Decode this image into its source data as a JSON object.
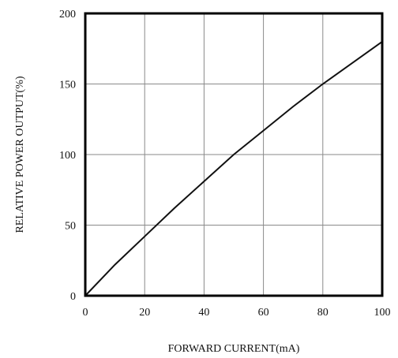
{
  "chart_data": {
    "type": "line",
    "title": "",
    "xlabel": "FORWARD CURRENT(mA)",
    "ylabel": "RELATIVE POWER OUTPUT(%)",
    "xlim": [
      0,
      100
    ],
    "ylim": [
      0,
      200
    ],
    "xticks": [
      "0",
      "20",
      "40",
      "60",
      "80",
      "100"
    ],
    "yticks": [
      "0",
      "50",
      "100",
      "150",
      "200"
    ],
    "grid": true,
    "series": [
      {
        "x": [
          0,
          5,
          10,
          20,
          30,
          40,
          50,
          60,
          70,
          80,
          90,
          100
        ],
        "y": [
          0,
          11,
          22,
          42,
          62,
          81,
          100,
          117,
          134,
          150,
          165,
          180
        ]
      }
    ]
  },
  "colors": {
    "line": "#111111",
    "grid": "#8a8a8a",
    "frame": "#000000"
  }
}
